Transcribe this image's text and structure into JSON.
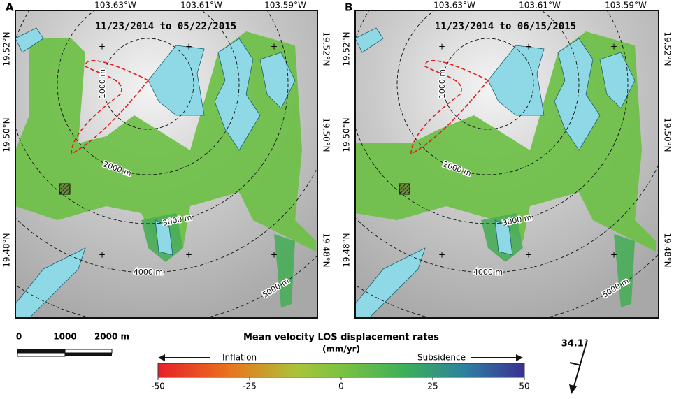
{
  "panels": [
    {
      "label": "A",
      "date_range": "11/23/2014 to 05/22/2015"
    },
    {
      "label": "B",
      "date_range": "11/23/2014 to 06/15/2015"
    }
  ],
  "longitude_labels": [
    "103.63°W",
    "103.61°W",
    "103.59°W"
  ],
  "latitude_labels": [
    "19.52°N",
    "19.50°N",
    "19.48°N"
  ],
  "distance_labels": [
    "1000 m",
    "2000 m",
    "3000 m",
    "4000 m",
    "5000 m"
  ],
  "scale_bar": {
    "labels": [
      "0",
      "1000",
      "2000 m"
    ]
  },
  "colorbar": {
    "title": "Mean velocity LOS displacement rates",
    "units": "(mm/yr)",
    "left_label": "Inflation",
    "right_label": "Subsidence",
    "lim": [
      -50,
      50
    ],
    "ticks": [
      -50,
      -25,
      0,
      25,
      50
    ]
  },
  "look_angle": "34.1°"
}
